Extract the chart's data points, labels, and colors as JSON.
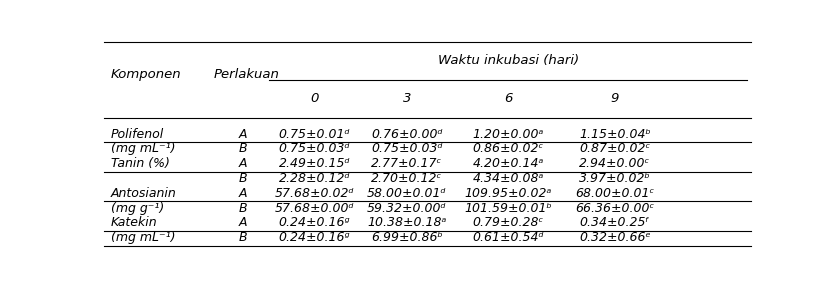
{
  "title_main": "Waktu inkubasi (hari)",
  "col_headers": [
    "0",
    "3",
    "6",
    "9"
  ],
  "rows": [
    [
      "0.75±0.01ᵈ",
      "0.76±0.00ᵈ",
      "1.20±0.00ᵃ",
      "1.15±0.04ᵇ"
    ],
    [
      "0.75±0.03ᵈ",
      "0.75±0.03ᵈ",
      "0.86±0.02ᶜ",
      "0.87±0.02ᶜ"
    ],
    [
      "2.49±0.15ᵈ",
      "2.77±0.17ᶜ",
      "4.20±0.14ᵃ",
      "2.94±0.00ᶜ"
    ],
    [
      "2.28±0.12ᵈ",
      "2.70±0.12ᶜ",
      "4.34±0.08ᵃ",
      "3.97±0.02ᵇ"
    ],
    [
      "57.68±0.02ᵈ",
      "58.00±0.01ᵈ",
      "109.95±0.02ᵃ",
      "68.00±0.01ᶜ"
    ],
    [
      "57.68±0.00ᵈ",
      "59.32±0.00ᵈ",
      "101.59±0.01ᵇ",
      "66.36±0.00ᶜ"
    ],
    [
      "0.24±0.16ᵍ",
      "10.38±0.18ᵃ",
      "0.79±0.28ᶜ",
      "0.34±0.25ᶠ"
    ],
    [
      "0.24±0.16ᵍ",
      "6.99±0.86ᵇ",
      "0.61±0.54ᵈ",
      "0.32±0.66ᵉ"
    ]
  ],
  "komponen_labels": [
    "Polifenol",
    "(mg mL⁻¹)",
    "Tanin (%)",
    "",
    "Antosianin",
    "(mg g⁻¹)",
    "Katekin",
    "(mg mL⁻¹)"
  ],
  "perlakuan_labels": [
    "A",
    "B",
    "A",
    "B",
    "A",
    "B",
    "A",
    "B"
  ],
  "bg_color": "#ffffff",
  "text_color": "#000000",
  "font_size": 9.0,
  "header_font_size": 9.5
}
